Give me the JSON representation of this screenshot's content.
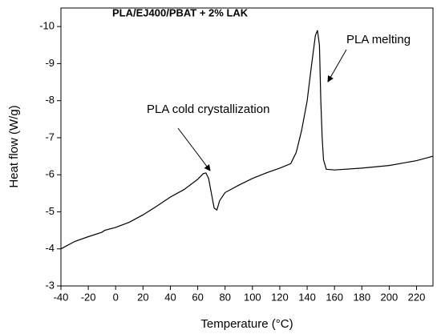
{
  "chart_data": {
    "type": "line",
    "title": "PLA/EJ400/PBAT + 2% LAK",
    "x_label": "Temperature (°C)",
    "y_label": "Heat flow (W/g)",
    "annotations": [
      "PLA cold crystallization",
      "PLA melting"
    ],
    "xlim": [
      -40,
      232
    ],
    "ylim": [
      -3,
      -10.5
    ],
    "xticks": [
      -40,
      -20,
      0,
      20,
      40,
      60,
      80,
      100,
      120,
      140,
      160,
      180,
      200,
      220
    ],
    "yticks": [
      -3,
      -4,
      -5,
      -6,
      -7,
      -8,
      -9,
      -10
    ],
    "series": [
      {
        "color": "#000000",
        "x": [
          -40,
          -30,
          -20,
          -10,
          -8,
          0,
          10,
          20,
          30,
          40,
          50,
          60,
          64,
          66,
          68,
          70,
          72,
          74,
          76,
          80,
          90,
          100,
          110,
          120,
          128,
          132,
          136,
          140,
          143,
          146,
          147.5,
          149,
          150,
          151,
          152,
          154,
          160,
          180,
          200,
          220,
          232
        ],
        "values": [
          -4.0,
          -4.2,
          -4.33,
          -4.45,
          -4.5,
          -4.58,
          -4.72,
          -4.92,
          -5.15,
          -5.4,
          -5.6,
          -5.88,
          -6.03,
          -6.05,
          -5.9,
          -5.5,
          -5.1,
          -5.05,
          -5.3,
          -5.52,
          -5.72,
          -5.9,
          -6.05,
          -6.18,
          -6.3,
          -6.6,
          -7.2,
          -8.0,
          -8.9,
          -9.75,
          -9.9,
          -9.5,
          -8.0,
          -7.0,
          -6.4,
          -6.15,
          -6.13,
          -6.18,
          -6.25,
          -6.38,
          -6.5
        ]
      }
    ]
  }
}
